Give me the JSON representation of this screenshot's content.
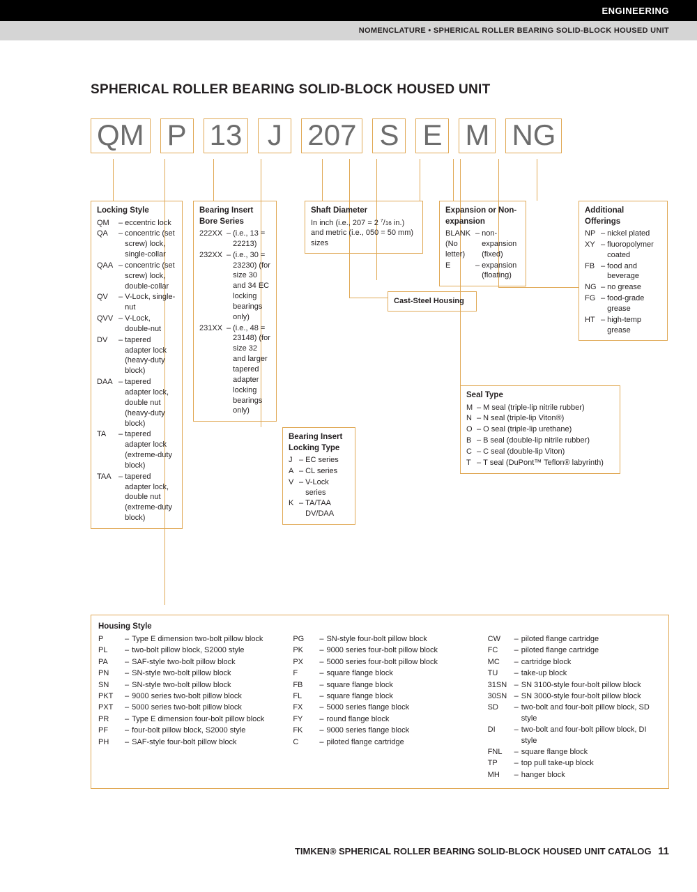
{
  "header": {
    "section": "ENGINEERING",
    "breadcrumb": "NOMENCLATURE • SPHERICAL ROLLER BEARING SOLID-BLOCK HOUSED UNIT"
  },
  "title": "SPHERICAL ROLLER BEARING SOLID-BLOCK HOUSED UNIT",
  "code_parts": [
    "QM",
    "P",
    "13",
    "J",
    "207",
    "S",
    "E",
    "M",
    "NG"
  ],
  "locking_style": {
    "heading": "Locking Style",
    "items": [
      {
        "code": "QM",
        "desc": "eccentric lock"
      },
      {
        "code": "QA",
        "desc": "concentric (set screw) lock, single-collar"
      },
      {
        "code": "QAA",
        "desc": "concentric (set screw) lock, double-collar"
      },
      {
        "code": "QV",
        "desc": "V-Lock, single-nut"
      },
      {
        "code": "QVV",
        "desc": "V-Lock, double-nut"
      },
      {
        "code": "DV",
        "desc": "tapered adapter lock (heavy-duty block)"
      },
      {
        "code": "DAA",
        "desc": "tapered adapter lock, double nut (heavy-duty block)"
      },
      {
        "code": "TA",
        "desc": "tapered adapter lock (extreme-duty block)"
      },
      {
        "code": "TAA",
        "desc": "tapered adapter lock, double nut (extreme-duty block)"
      }
    ]
  },
  "bearing_insert_bore": {
    "heading": "Bearing Insert Bore Series",
    "items": [
      {
        "code": "222XX",
        "desc": "(i.e., 13 = 22213)"
      },
      {
        "code": "232XX",
        "desc": "(i.e., 30 = 23230) (for size 30 and 34 EC locking bearings only)"
      },
      {
        "code": "231XX",
        "desc": "(i.e., 48 = 23148) (for size 32 and larger tapered adapter locking bearings only)"
      }
    ]
  },
  "locking_type": {
    "heading": "Bearing Insert Locking Type",
    "items": [
      {
        "code": "J",
        "desc": "EC series"
      },
      {
        "code": "A",
        "desc": "CL series"
      },
      {
        "code": "V",
        "desc": "V-Lock series"
      },
      {
        "code": "K",
        "desc": "TA/TAA DV/DAA"
      }
    ]
  },
  "shaft_diameter": {
    "heading": "Shaft Diameter",
    "desc_a": "In inch (i.e., 207 = 2 ",
    "desc_frac_n": "7",
    "desc_frac_d": "16",
    "desc_b": " in.) and metric (i.e., 050 = 50 mm) sizes"
  },
  "cast_steel": "Cast-Steel Housing",
  "expansion": {
    "heading": "Expansion or Non-expansion",
    "items": [
      {
        "code": "BLANK (No letter)",
        "desc": "non-expansion (fixed)"
      },
      {
        "code": "E",
        "desc": "expansion (floating)"
      }
    ]
  },
  "seal_type": {
    "heading": "Seal Type",
    "items": [
      {
        "code": "M",
        "desc": "M seal (triple-lip nitrile rubber)"
      },
      {
        "code": "N",
        "desc": "N seal (triple-lip Viton®)"
      },
      {
        "code": "O",
        "desc": "O seal (triple-lip urethane)"
      },
      {
        "code": "B",
        "desc": "B seal (double-lip nitrile rubber)"
      },
      {
        "code": "C",
        "desc": "C seal (double-lip Viton)"
      },
      {
        "code": "T",
        "desc": "T seal (DuPont™ Teflon® labyrinth)"
      }
    ]
  },
  "additional": {
    "heading": "Additional Offerings",
    "items": [
      {
        "code": "NP",
        "desc": "nickel plated"
      },
      {
        "code": "XY",
        "desc": "fluoropolymer coated"
      },
      {
        "code": "FB",
        "desc": "food and beverage"
      },
      {
        "code": "NG",
        "desc": "no grease"
      },
      {
        "code": "FG",
        "desc": "food-grade grease"
      },
      {
        "code": "HT",
        "desc": "high-temp grease"
      }
    ]
  },
  "housing": {
    "heading": "Housing Style",
    "col1": [
      {
        "code": "P",
        "desc": "Type E dimension two-bolt pillow block"
      },
      {
        "code": "PL",
        "desc": "two-bolt pillow block, S2000 style"
      },
      {
        "code": "PA",
        "desc": "SAF-style two-bolt pillow block"
      },
      {
        "code": "PN",
        "desc": "SN-style two-bolt pillow block"
      },
      {
        "code": "SN",
        "desc": "SN-style two-bolt pillow block"
      },
      {
        "code": "PKT",
        "desc": "9000 series two-bolt pillow block"
      },
      {
        "code": "PXT",
        "desc": "5000 series two-bolt pillow block"
      },
      {
        "code": "PR",
        "desc": "Type E dimension four-bolt pillow block"
      },
      {
        "code": "PF",
        "desc": "four-bolt pillow block, S2000 style"
      },
      {
        "code": "PH",
        "desc": "SAF-style four-bolt pillow block"
      }
    ],
    "col2": [
      {
        "code": "PG",
        "desc": "SN-style four-bolt pillow block"
      },
      {
        "code": "PK",
        "desc": "9000 series four-bolt pillow block"
      },
      {
        "code": "PX",
        "desc": "5000 series four-bolt pillow block"
      },
      {
        "code": "F",
        "desc": "square flange block"
      },
      {
        "code": "FB",
        "desc": "square flange block"
      },
      {
        "code": "FL",
        "desc": "square flange block"
      },
      {
        "code": "FX",
        "desc": "5000 series flange block"
      },
      {
        "code": "FY",
        "desc": "round flange block"
      },
      {
        "code": "FK",
        "desc": "9000 series flange block"
      },
      {
        "code": "C",
        "desc": "piloted flange cartridge"
      }
    ],
    "col3": [
      {
        "code": "CW",
        "desc": "piloted flange cartridge"
      },
      {
        "code": "FC",
        "desc": "piloted flange cartridge"
      },
      {
        "code": "MC",
        "desc": "cartridge block"
      },
      {
        "code": "TU",
        "desc": "take-up block"
      },
      {
        "code": "31SN",
        "desc": "SN 3100-style four-bolt pillow block"
      },
      {
        "code": "30SN",
        "desc": "SN 3000-style four-bolt pillow block"
      },
      {
        "code": "SD",
        "desc": "two-bolt and four-bolt pillow block, SD style"
      },
      {
        "code": "DI",
        "desc": "two-bolt and four-bolt pillow block, DI style"
      },
      {
        "code": "FNL",
        "desc": "square flange block"
      },
      {
        "code": "TP",
        "desc": "top pull take-up block"
      },
      {
        "code": "MH",
        "desc": "hanger block"
      }
    ]
  },
  "footer": {
    "text": "TIMKEN® SPHERICAL ROLLER BEARING SOLID-BLOCK HOUSED UNIT CATALOG",
    "page": "11"
  },
  "colors": {
    "accent": "#e0a854",
    "code_text": "#6d6d6d",
    "black": "#000000",
    "gray_bar": "#d5d5d5",
    "text": "#231f20"
  }
}
